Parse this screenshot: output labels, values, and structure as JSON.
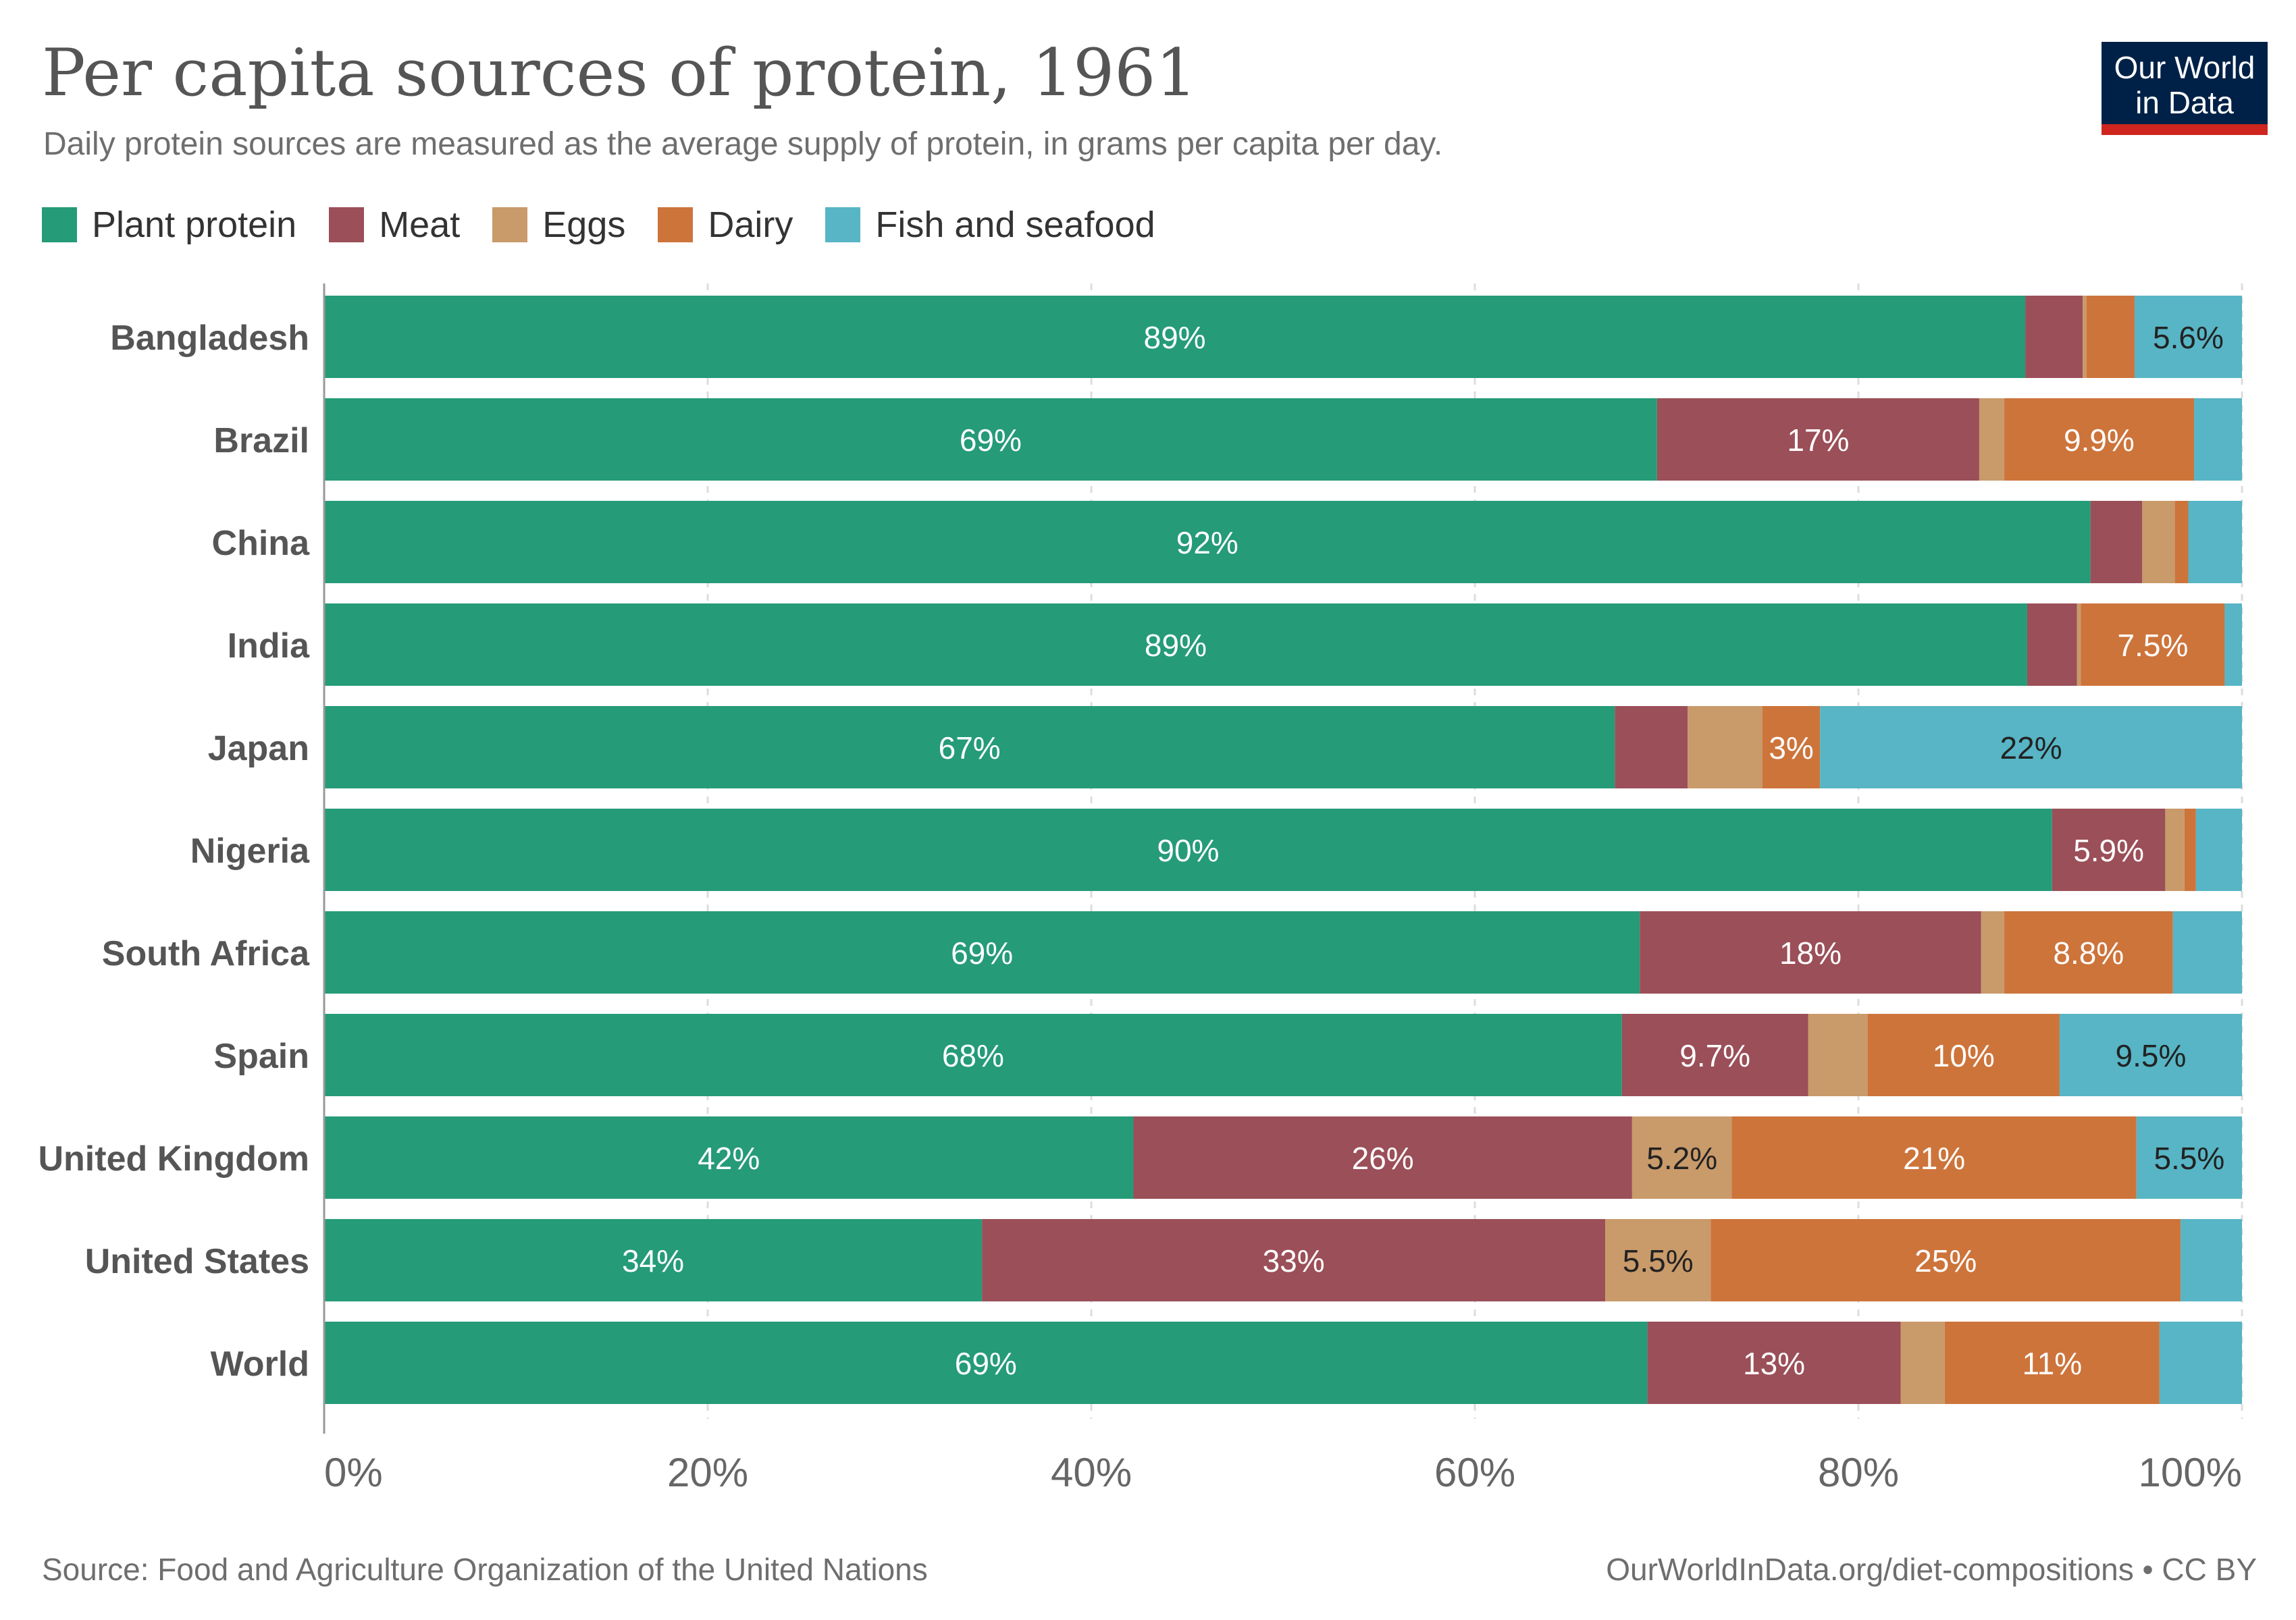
{
  "header": {
    "title": "Per capita sources of protein, 1961",
    "subtitle": "Daily protein sources are measured as the average supply of protein, in grams per capita per day.",
    "logo_line1": "Our World",
    "logo_line2": "in Data"
  },
  "footer": {
    "source": "Source: Food and Agriculture Organization of the United Nations",
    "credit": "OurWorldInData.org/diet-compositions • CC BY"
  },
  "chart_data": {
    "type": "bar",
    "orientation": "horizontal",
    "stacked": true,
    "normalized": true,
    "title": "Per capita sources of protein, 1961",
    "subtitle": "Daily protein sources are measured as the average supply of protein, in grams per capita per day.",
    "xlim": [
      0,
      100
    ],
    "x_ticks": [
      0,
      20,
      40,
      60,
      80,
      100
    ],
    "x_tick_labels": [
      "0%",
      "20%",
      "40%",
      "60%",
      "80%",
      "100%"
    ],
    "grid": true,
    "legend_position": "top-left",
    "categories": [
      "Bangladesh",
      "Brazil",
      "China",
      "India",
      "Japan",
      "Nigeria",
      "South Africa",
      "Spain",
      "United Kingdom",
      "United States",
      "World"
    ],
    "series": [
      {
        "name": "Plant protein",
        "color": "#259b78",
        "values": [
          88.7,
          69.5,
          92.1,
          88.8,
          67.3,
          90.1,
          68.6,
          67.6,
          42.2,
          34.3,
          69.0
        ],
        "labels": [
          "89%",
          "69%",
          "92%",
          "89%",
          "67%",
          "90%",
          "69%",
          "68%",
          "42%",
          "34%",
          "69%"
        ]
      },
      {
        "name": "Meat",
        "color": "#9b4f58",
        "values": [
          3.0,
          16.8,
          2.7,
          2.6,
          3.8,
          5.9,
          17.8,
          9.7,
          26.0,
          32.5,
          13.2
        ],
        "labels": [
          "",
          "17%",
          "",
          "",
          "",
          "5.9%",
          "18%",
          "9.7%",
          "26%",
          "33%",
          "13%"
        ]
      },
      {
        "name": "Eggs",
        "color": "#c99a6a",
        "values": [
          0.2,
          1.3,
          1.7,
          0.2,
          3.9,
          1.0,
          1.2,
          3.1,
          5.2,
          5.5,
          2.3
        ],
        "labels": [
          "",
          "",
          "",
          "",
          "",
          "",
          "",
          "",
          "5.2%",
          "5.5%",
          ""
        ]
      },
      {
        "name": "Dairy",
        "color": "#cd743b",
        "values": [
          2.5,
          9.9,
          0.7,
          7.5,
          3.0,
          0.6,
          8.8,
          10.0,
          21.1,
          24.5,
          11.2
        ],
        "labels": [
          "",
          "9.9%",
          "",
          "7.5%",
          "3%",
          "",
          "8.8%",
          "10%",
          "21%",
          "25%",
          "11%"
        ]
      },
      {
        "name": "Fish and seafood",
        "color": "#57b5c5",
        "values": [
          5.6,
          2.5,
          2.8,
          0.9,
          22.0,
          2.4,
          3.6,
          9.5,
          5.5,
          3.2,
          4.3
        ],
        "labels": [
          "5.6%",
          "",
          "",
          "",
          "22%",
          "",
          "",
          "9.5%",
          "5.5%",
          "",
          ""
        ]
      }
    ]
  }
}
